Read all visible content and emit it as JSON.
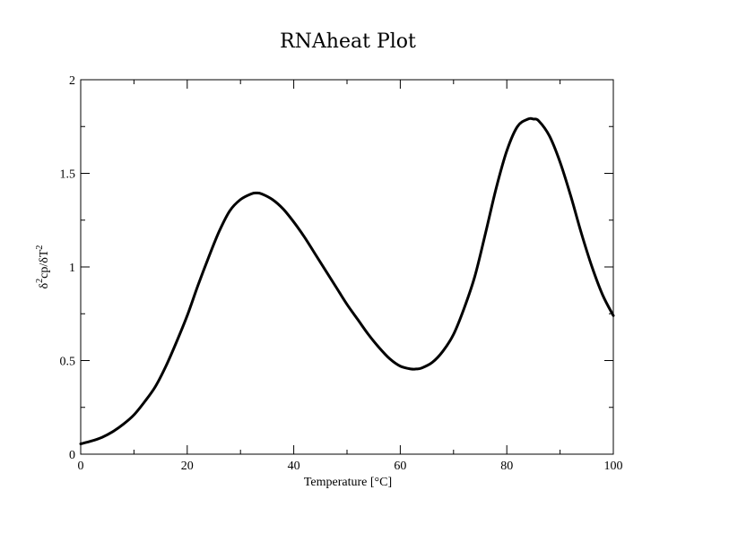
{
  "chart_data": {
    "type": "line",
    "title": "RNAheat Plot",
    "xlabel": "Temperature [°C]",
    "ylabel": {
      "delta1": "δ",
      "sup1": "2",
      "mid": "cp/δT",
      "sup2": "2"
    },
    "xlim": [
      0,
      100
    ],
    "ylim": [
      0,
      2
    ],
    "x_ticks": [
      0,
      20,
      40,
      60,
      80,
      100
    ],
    "y_ticks": [
      0,
      0.5,
      1,
      1.5,
      2
    ],
    "x_tick_labels": [
      "0",
      "20",
      "40",
      "60",
      "80",
      "100"
    ],
    "y_tick_labels": [
      "0",
      "0.5",
      "1",
      "1.5",
      "2"
    ],
    "x_minor_ticks": [
      10,
      30,
      50,
      70,
      90
    ],
    "y_minor_ticks": [
      0.25,
      0.75,
      1.25,
      1.75
    ],
    "grid": false,
    "line_color": "#000000",
    "series": [
      {
        "x": [
          0,
          2,
          4,
          6,
          8,
          10,
          12,
          14,
          16,
          18,
          20,
          22,
          24,
          26,
          28,
          30,
          32,
          33,
          34,
          36,
          38,
          40,
          42,
          44,
          46,
          48,
          50,
          52,
          54,
          56,
          58,
          60,
          62,
          63,
          64,
          66,
          68,
          70,
          72,
          74,
          76,
          78,
          80,
          82,
          84,
          85,
          86,
          88,
          90,
          92,
          94,
          96,
          98,
          100
        ],
        "values": [
          0.055,
          0.07,
          0.09,
          0.12,
          0.16,
          0.21,
          0.28,
          0.36,
          0.47,
          0.6,
          0.74,
          0.9,
          1.05,
          1.19,
          1.3,
          1.36,
          1.39,
          1.395,
          1.39,
          1.36,
          1.31,
          1.24,
          1.16,
          1.07,
          0.98,
          0.89,
          0.8,
          0.72,
          0.64,
          0.57,
          0.51,
          0.47,
          0.455,
          0.455,
          0.46,
          0.49,
          0.55,
          0.64,
          0.78,
          0.95,
          1.18,
          1.42,
          1.62,
          1.75,
          1.79,
          1.79,
          1.78,
          1.7,
          1.56,
          1.38,
          1.18,
          1.0,
          0.85,
          0.74
        ]
      }
    ]
  }
}
